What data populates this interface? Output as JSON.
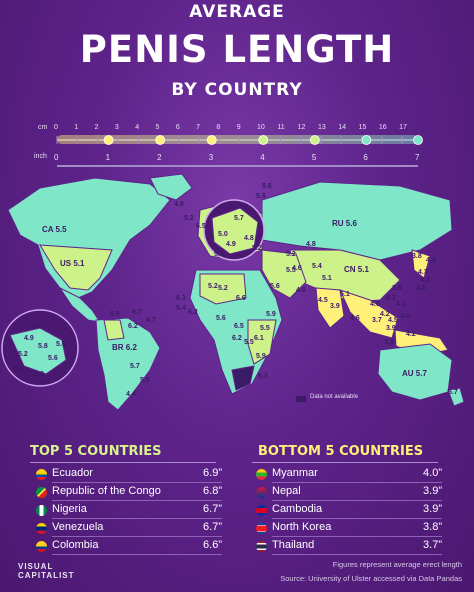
{
  "title": {
    "line1": "AVERAGE",
    "line2": "PENIS LENGTH",
    "line3": "BY COUNTRY"
  },
  "scale": {
    "cm_label": "cm",
    "inch_label": "inch",
    "cm_ticks": [
      "0",
      "1",
      "2",
      "3",
      "4",
      "5",
      "6",
      "7",
      "8",
      "9",
      "10",
      "11",
      "12",
      "13",
      "14",
      "15",
      "16",
      "17"
    ],
    "inch_ticks": [
      "0",
      "1",
      "2",
      "3",
      "4",
      "5",
      "6",
      "7"
    ]
  },
  "legend": {
    "not_available": "Data not available"
  },
  "map_labels": [
    {
      "code": "CA",
      "value": "5.5"
    },
    {
      "code": "US",
      "value": "5.1"
    },
    {
      "code": "RU",
      "value": "5.6"
    },
    {
      "code": "CN",
      "value": "5.1"
    },
    {
      "code": "BR",
      "value": "6.2"
    },
    {
      "code": "AU",
      "value": "5.7"
    }
  ],
  "map_values": [
    "5.6",
    "4.9",
    "5.6",
    "5.2",
    "6.5",
    "5.7",
    "4.9",
    "5.0",
    "4.8",
    "5.3",
    "5.2",
    "5.2",
    "5.5",
    "4.8",
    "4.6",
    "5.6",
    "5.4",
    "4.6",
    "4.5",
    "5.1",
    "5.1",
    "3.8",
    "4.3",
    "4.4",
    "4.3",
    "4.0",
    "4.3",
    "4.1",
    "3.9",
    "4.2",
    "3.7",
    "4.0",
    "4.2",
    "3.9",
    "3.9",
    "5.2",
    "6.3",
    "5.4",
    "6.2",
    "5.2",
    "6.6",
    "5.6",
    "6.5",
    "6.2",
    "5.5",
    "6.1",
    "5.5",
    "5.9",
    "5.9",
    "5.3",
    "6.7",
    "4.7",
    "6.9",
    "6.2",
    "4.9",
    "5.8",
    "5.6",
    "6.4",
    "5.2",
    "5.6",
    "5.0",
    "5.4",
    "5.4",
    "5.7",
    "5.0",
    "4.4",
    "4.6",
    "4.5",
    "3.8",
    "4.0",
    "5.7"
  ],
  "top5": {
    "header": "TOP 5 COUNTRIES",
    "rows": [
      {
        "name": "Ecuador",
        "value": "6.9”"
      },
      {
        "name": "Republic of the Congo",
        "value": "6.8”"
      },
      {
        "name": "Nigeria",
        "value": "6.7”"
      },
      {
        "name": "Venezuela",
        "value": "6.7”"
      },
      {
        "name": "Colombia",
        "value": "6.6”"
      }
    ]
  },
  "bottom5": {
    "header": "BOTTOM 5 COUNTRIES",
    "rows": [
      {
        "name": "Myanmar",
        "value": "4.0”"
      },
      {
        "name": "Nepal",
        "value": "3.9”"
      },
      {
        "name": "Cambodia",
        "value": "3.9”"
      },
      {
        "name": "North Korea",
        "value": "3.8”"
      },
      {
        "name": "Thailand",
        "value": "3.7”"
      }
    ]
  },
  "footer": {
    "note": "Figures represent average erect length",
    "source": "Source: University of Ulster accessed via Data Pandas"
  },
  "brand": {
    "line1": "VISUAL",
    "line2": "CAPITALIST"
  },
  "colors": {
    "background": "#5d238a",
    "high": "#7fe7c8",
    "mid": "#cdf28a",
    "low": "#fff07a",
    "ruler_line": "#a48ac8",
    "no_data": "#3b1a66"
  }
}
